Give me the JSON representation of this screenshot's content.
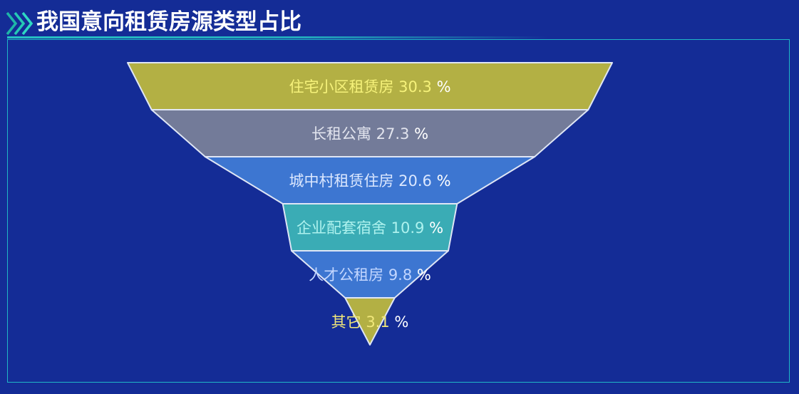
{
  "header": {
    "title": "我国意向租赁房源类型占比"
  },
  "chart_data": {
    "type": "funnel",
    "title": "我国意向租赁房源类型占比",
    "unit": "%",
    "categories": [
      "住宅小区租赁房",
      "长租公寓",
      "城中村租赁住房",
      "企业配套宿舍",
      "人才公租房",
      "其它"
    ],
    "values": [
      30.3,
      27.3,
      20.6,
      10.9,
      9.8,
      3.1
    ],
    "labels": [
      "住宅小区租赁房 30.3",
      "长租公寓 27.3",
      "城中村租赁住房 20.6",
      "企业配套宿舍 10.9",
      "人才公租房 9.8",
      "其它 3.1"
    ],
    "colors": [
      "#b3b044",
      "#737b99",
      "#3d76d1",
      "#3aacb5",
      "#3d76d1",
      "#b3b044"
    ],
    "label_colors": [
      "#f6f27a",
      "#e2e4ee",
      "#dce8ff",
      "#aef2ee",
      "#c2d6ff",
      "#f0e77a"
    ],
    "legend": "none",
    "grid": false
  }
}
